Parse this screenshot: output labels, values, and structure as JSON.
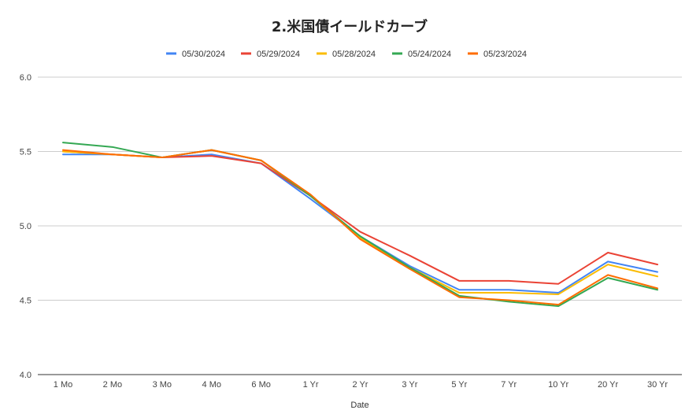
{
  "chart_data": {
    "type": "line",
    "title": "2.米国債イールドカーブ",
    "xlabel": "Date",
    "ylabel": "",
    "categories": [
      "1 Mo",
      "2 Mo",
      "3 Mo",
      "4 Mo",
      "6 Mo",
      "1 Yr",
      "2 Yr",
      "3 Yr",
      "5 Yr",
      "7 Yr",
      "10 Yr",
      "20 Yr",
      "30 Yr"
    ],
    "ylim": [
      4.0,
      6.0
    ],
    "yticks": [
      "6.0",
      "5.5",
      "5.0",
      "4.5",
      "4.0"
    ],
    "grid": true,
    "legend_position": "top",
    "series": [
      {
        "name": "05/30/2024",
        "color": "#4285F4",
        "values": [
          5.48,
          5.48,
          5.46,
          5.48,
          5.42,
          5.18,
          4.93,
          4.73,
          4.57,
          4.57,
          4.55,
          4.76,
          4.69
        ]
      },
      {
        "name": "05/29/2024",
        "color": "#EA4335",
        "values": [
          5.5,
          5.48,
          5.46,
          5.47,
          5.42,
          5.2,
          4.96,
          4.8,
          4.63,
          4.63,
          4.61,
          4.82,
          4.74
        ]
      },
      {
        "name": "05/28/2024",
        "color": "#FBBC04",
        "values": [
          5.5,
          5.48,
          5.46,
          5.51,
          5.44,
          5.2,
          4.92,
          4.72,
          4.55,
          4.55,
          4.54,
          4.74,
          4.66
        ]
      },
      {
        "name": "05/24/2024",
        "color": "#34A853",
        "values": [
          5.56,
          5.53,
          5.46,
          5.51,
          5.44,
          5.2,
          4.93,
          4.72,
          4.53,
          4.49,
          4.46,
          4.65,
          4.57
        ]
      },
      {
        "name": "05/23/2024",
        "color": "#FF6D01",
        "values": [
          5.51,
          5.48,
          5.46,
          5.51,
          5.44,
          5.21,
          4.91,
          4.71,
          4.52,
          4.5,
          4.47,
          4.67,
          4.58
        ]
      }
    ]
  }
}
